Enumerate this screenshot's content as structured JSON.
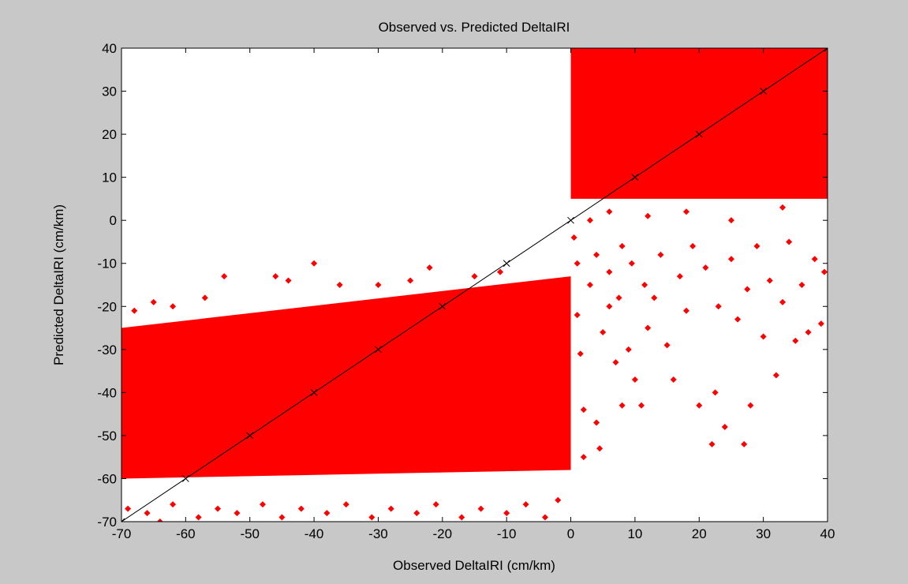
{
  "chart_data": {
    "type": "scatter",
    "title": "Observed vs. Predicted DeltaIRI",
    "xlabel": "Observed DeltaIRI (cm/km)",
    "ylabel": "Predicted DeltaIRI (cm/km)",
    "xlim": [
      -70,
      40
    ],
    "ylim": [
      -70,
      40
    ],
    "xticks": [
      "-70",
      "-60",
      "-50",
      "-40",
      "-30",
      "-20",
      "-10",
      "0",
      "10",
      "20",
      "30",
      "40"
    ],
    "yticks": [
      "-70",
      "-60",
      "-50",
      "-40",
      "-30",
      "-20",
      "-10",
      "0",
      "10",
      "20",
      "30",
      "40"
    ],
    "grid": false,
    "background_color": "#c8c8c8",
    "plot_area_color": "#ffffff",
    "series": [
      {
        "marker": "diamond",
        "color": "#ff0000",
        "dense_regions": [
          {
            "x_range": [
              -70,
              0
            ],
            "y_lower": [
              -60,
              -58
            ],
            "y_upper": [
              -25,
              -13
            ]
          },
          {
            "x_range": [
              0,
              40
            ],
            "y_lower": [
              5,
              5
            ],
            "y_upper": [
              40,
              40
            ]
          }
        ],
        "points": [
          [
            -69,
            -67
          ],
          [
            -66,
            -68
          ],
          [
            -64,
            -70
          ],
          [
            -62,
            -66
          ],
          [
            -58,
            -69
          ],
          [
            -55,
            -67
          ],
          [
            -52,
            -68
          ],
          [
            -48,
            -66
          ],
          [
            -45,
            -69
          ],
          [
            -42,
            -67
          ],
          [
            -38,
            -68
          ],
          [
            -35,
            -66
          ],
          [
            -31,
            -69
          ],
          [
            -28,
            -67
          ],
          [
            -24,
            -68
          ],
          [
            -21,
            -66
          ],
          [
            -17,
            -69
          ],
          [
            -14,
            -67
          ],
          [
            -10,
            -68
          ],
          [
            -7,
            -66
          ],
          [
            -4,
            -69
          ],
          [
            -2,
            -65
          ],
          [
            -68,
            -21
          ],
          [
            -65,
            -19
          ],
          [
            -62,
            -20
          ],
          [
            -57,
            -18
          ],
          [
            -54,
            -13
          ],
          [
            -46,
            -13
          ],
          [
            -44,
            -14
          ],
          [
            -40,
            -10
          ],
          [
            -36,
            -15
          ],
          [
            -30,
            -15
          ],
          [
            -25,
            -14
          ],
          [
            -22,
            -11
          ],
          [
            -15,
            -13
          ],
          [
            -11,
            -12
          ],
          [
            0.5,
            -4
          ],
          [
            1,
            -10
          ],
          [
            1,
            -22
          ],
          [
            1.5,
            -31
          ],
          [
            2,
            -44
          ],
          [
            2,
            -55
          ],
          [
            3,
            -15
          ],
          [
            4,
            -8
          ],
          [
            4,
            -47
          ],
          [
            4.5,
            -53
          ],
          [
            5,
            -26
          ],
          [
            6,
            -20
          ],
          [
            6,
            -12
          ],
          [
            7,
            -33
          ],
          [
            7.5,
            -18
          ],
          [
            8,
            -43
          ],
          [
            8,
            -6
          ],
          [
            9,
            -30
          ],
          [
            9.5,
            -10
          ],
          [
            10,
            -37
          ],
          [
            11,
            -43
          ],
          [
            11.5,
            -15
          ],
          [
            12,
            -25
          ],
          [
            13,
            -18
          ],
          [
            14,
            -8
          ],
          [
            15,
            -29
          ],
          [
            16,
            -37
          ],
          [
            17,
            -13
          ],
          [
            18,
            -21
          ],
          [
            19,
            -6
          ],
          [
            20,
            -43
          ],
          [
            21,
            -11
          ],
          [
            22,
            -52
          ],
          [
            22.5,
            -40
          ],
          [
            23,
            -20
          ],
          [
            24,
            -48
          ],
          [
            25,
            -9
          ],
          [
            26,
            -23
          ],
          [
            27,
            -52
          ],
          [
            27.5,
            -16
          ],
          [
            28,
            -43
          ],
          [
            29,
            -6
          ],
          [
            30,
            -27
          ],
          [
            31,
            -14
          ],
          [
            32,
            -36
          ],
          [
            33,
            -19
          ],
          [
            34,
            -5
          ],
          [
            35,
            -28
          ],
          [
            36,
            -15
          ],
          [
            37,
            -26
          ],
          [
            38,
            -9
          ],
          [
            39,
            -24
          ],
          [
            39.5,
            -12
          ],
          [
            3,
            0
          ],
          [
            6,
            2
          ],
          [
            12,
            1
          ],
          [
            18,
            2
          ],
          [
            25,
            0
          ],
          [
            33,
            3
          ]
        ]
      },
      {
        "type": "line",
        "color": "#000000",
        "marker": "x",
        "x": [
          -70,
          -60,
          -50,
          -40,
          -30,
          -20,
          -10,
          0,
          10,
          20,
          30,
          40
        ],
        "y": [
          -70,
          -60,
          -50,
          -40,
          -30,
          -20,
          -10,
          0,
          10,
          20,
          30,
          40
        ]
      }
    ]
  }
}
